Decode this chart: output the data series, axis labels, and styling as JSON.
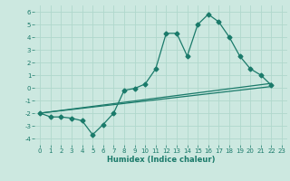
{
  "title": "",
  "xlabel": "Humidex (Indice chaleur)",
  "xlim": [
    -0.5,
    23.5
  ],
  "ylim": [
    -4.5,
    6.5
  ],
  "xticks": [
    0,
    1,
    2,
    3,
    4,
    5,
    6,
    7,
    8,
    9,
    10,
    11,
    12,
    13,
    14,
    15,
    16,
    17,
    18,
    19,
    20,
    21,
    22,
    23
  ],
  "yticks": [
    -4,
    -3,
    -2,
    -1,
    0,
    1,
    2,
    3,
    4,
    5,
    6
  ],
  "color": "#1a7a6a",
  "bg_color": "#cce8e0",
  "grid_color": "#b0d8cc",
  "line1_x": [
    0,
    1,
    2,
    3,
    4,
    5,
    6,
    7,
    8,
    9,
    10,
    11,
    12,
    13,
    14,
    15,
    16,
    17,
    18,
    19,
    20,
    21,
    22
  ],
  "line1_y": [
    -2.0,
    -2.3,
    -2.3,
    -2.4,
    -2.6,
    -3.7,
    -2.9,
    -2.0,
    -0.2,
    -0.05,
    0.3,
    1.5,
    4.3,
    4.3,
    2.5,
    5.0,
    5.8,
    5.2,
    4.0,
    2.5,
    1.5,
    1.0,
    0.2
  ],
  "line2_x": [
    0,
    22
  ],
  "line2_y": [
    -2.0,
    0.1
  ],
  "line3_x": [
    0,
    22
  ],
  "line3_y": [
    -2.0,
    0.35
  ],
  "marker": "D",
  "markersize": 2.5,
  "linewidth": 0.9,
  "tick_fontsize": 5.0,
  "xlabel_fontsize": 6.0
}
